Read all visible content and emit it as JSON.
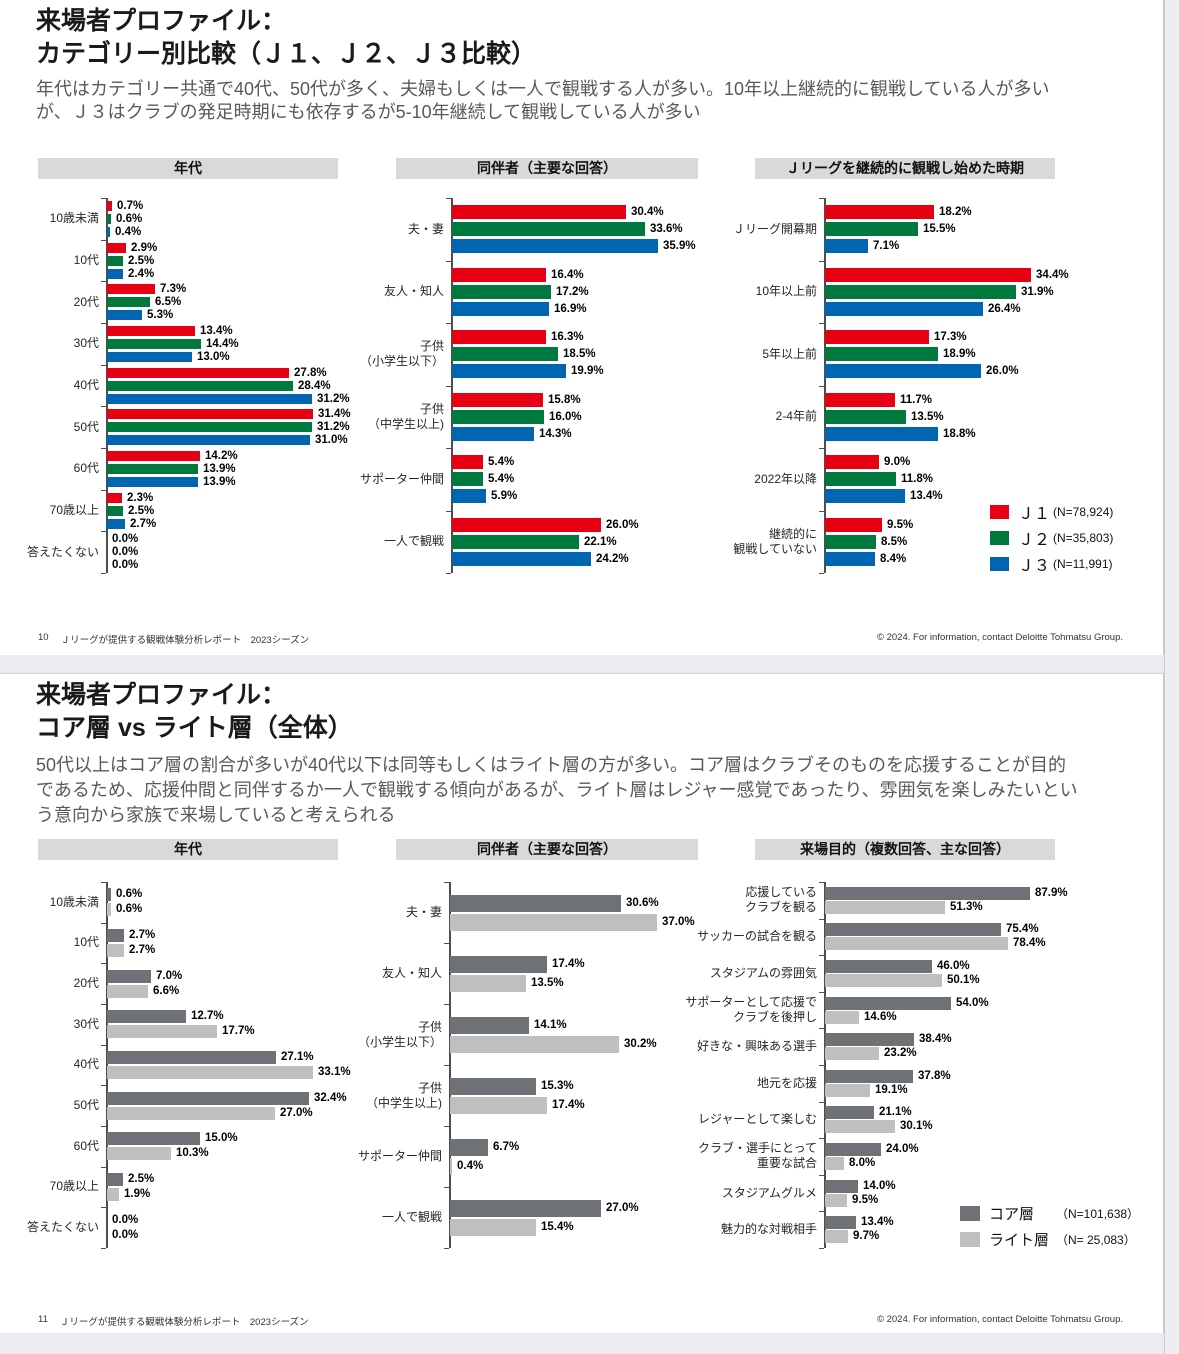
{
  "page_background": "#ebebf0",
  "slides": [
    {
      "page_number": "10",
      "title_line1": "来場者プロファイル：",
      "title_line2": "カテゴリー別比較（Ｊ１、Ｊ２、Ｊ３比較）",
      "body": "年代はカテゴリー共通で40代、50代が多く、夫婦もしくは一人で観戦する人が多い。10年以上継続的に観戦している人が多い\nが、Ｊ３はクラブの発足時期にも依存するが5-10年継続して観戦している人が多い",
      "legend": [
        {
          "label": "Ｊ１",
          "n": "(N=78,924)",
          "color": "#e60012"
        },
        {
          "label": "Ｊ２",
          "n": "(N=35,803)",
          "color": "#00793e"
        },
        {
          "label": "Ｊ３",
          "n": "(N=11,991)",
          "color": "#0066b2"
        }
      ],
      "footer_left": "Ｊリーグが提供する観戦体験分析レポート　2023シーズン",
      "footer_right": "© 2024. For information, contact Deloitte Tohmatsu Group."
    },
    {
      "page_number": "11",
      "title_line1": "来場者プロファイル：",
      "title_line2": "コア層 vs ライト層（全体）",
      "body": "50代以上はコア層の割合が多いが40代以下は同等もしくはライト層の方が多い。コア層はクラブそのものを応援することが目的\nであるため、応援仲間と同伴するか一人で観戦する傾向があるが、ライト層はレジャー感覚であったり、雰囲気を楽しみたいとい\nう意向から家族で来場していると考えられる",
      "legend": [
        {
          "label": "コア層",
          "n": "（N=101,638）",
          "color": "#6e7276"
        },
        {
          "label": "ライト層",
          "n": "（N= 25,083）",
          "color": "#bfbfbf"
        }
      ],
      "footer_left": "Ｊリーグが提供する観戦体験分析レポート　2023シーズン",
      "footer_right": "© 2024. For information, contact Deloitte Tohmatsu Group."
    }
  ],
  "chart_data": [
    {
      "type": "bar",
      "orientation": "horizontal",
      "title": "年代",
      "value_suffix": "%",
      "categories": [
        "10歳未満",
        "10代",
        "20代",
        "30代",
        "40代",
        "50代",
        "60代",
        "70歳以上",
        "答えたくない"
      ],
      "series": [
        {
          "name": "Ｊ１",
          "color": "#e60012",
          "values": [
            0.7,
            2.9,
            7.3,
            13.4,
            27.8,
            31.4,
            14.2,
            2.3,
            0.0
          ]
        },
        {
          "name": "Ｊ２",
          "color": "#00793e",
          "values": [
            0.6,
            2.5,
            6.5,
            14.4,
            28.4,
            31.2,
            13.9,
            2.5,
            0.0
          ]
        },
        {
          "name": "Ｊ３",
          "color": "#0066b2",
          "values": [
            0.4,
            2.4,
            5.3,
            13.0,
            31.2,
            31.0,
            13.9,
            2.7,
            0.0
          ]
        }
      ]
    },
    {
      "type": "bar",
      "orientation": "horizontal",
      "title": "同伴者（主要な回答）",
      "value_suffix": "%",
      "categories": [
        "夫・妻",
        "友人・知人",
        "子供\n（小学生以下）",
        "子供\n（中学生以上)",
        "サポーター仲間",
        "一人で観戦"
      ],
      "series": [
        {
          "name": "Ｊ１",
          "color": "#e60012",
          "values": [
            30.4,
            16.4,
            16.3,
            15.8,
            5.4,
            26.0
          ]
        },
        {
          "name": "Ｊ２",
          "color": "#00793e",
          "values": [
            33.6,
            17.2,
            18.5,
            16.0,
            5.4,
            22.1
          ]
        },
        {
          "name": "Ｊ３",
          "color": "#0066b2",
          "values": [
            35.9,
            16.9,
            19.9,
            14.3,
            5.9,
            24.2
          ]
        }
      ]
    },
    {
      "type": "bar",
      "orientation": "horizontal",
      "title": "Ｊリーグを継続的に観戦し始めた時期",
      "value_suffix": "%",
      "categories": [
        "Ｊリーグ開幕期",
        "10年以上前",
        "5年以上前",
        "2-4年前",
        "2022年以降",
        "継続的に\n観戦していない"
      ],
      "series": [
        {
          "name": "Ｊ１",
          "color": "#e60012",
          "values": [
            18.2,
            34.4,
            17.3,
            11.7,
            9.0,
            9.5
          ]
        },
        {
          "name": "Ｊ２",
          "color": "#00793e",
          "values": [
            15.5,
            31.9,
            18.9,
            13.5,
            11.8,
            8.5
          ]
        },
        {
          "name": "Ｊ３",
          "color": "#0066b2",
          "values": [
            7.1,
            26.4,
            26.0,
            18.8,
            13.4,
            8.4
          ]
        }
      ]
    },
    {
      "type": "bar",
      "orientation": "horizontal",
      "title": "年代",
      "value_suffix": "%",
      "categories": [
        "10歳未満",
        "10代",
        "20代",
        "30代",
        "40代",
        "50代",
        "60代",
        "70歳以上",
        "答えたくない"
      ],
      "series": [
        {
          "name": "コア層",
          "color": "#6e7276",
          "values": [
            0.6,
            2.7,
            7.0,
            12.7,
            27.1,
            32.4,
            15.0,
            2.5,
            0.0
          ]
        },
        {
          "name": "ライト層",
          "color": "#bfbfbf",
          "values": [
            0.6,
            2.7,
            6.6,
            17.7,
            33.1,
            27.0,
            10.3,
            1.9,
            0.0
          ]
        }
      ]
    },
    {
      "type": "bar",
      "orientation": "horizontal",
      "title": "同伴者（主要な回答）",
      "value_suffix": "%",
      "categories": [
        "夫・妻",
        "友人・知人",
        "子供\n（小学生以下）",
        "子供\n（中学生以上)",
        "サポーター仲間",
        "一人で観戦"
      ],
      "series": [
        {
          "name": "コア層",
          "color": "#6e7276",
          "values": [
            30.6,
            17.4,
            14.1,
            15.3,
            6.7,
            27.0
          ]
        },
        {
          "name": "ライト層",
          "color": "#bfbfbf",
          "values": [
            37.0,
            13.5,
            30.2,
            17.4,
            0.4,
            15.4
          ]
        }
      ]
    },
    {
      "type": "bar",
      "orientation": "horizontal",
      "title": "来場目的（複数回答、主な回答）",
      "value_suffix": "%",
      "categories": [
        "応援している\nクラブを観る",
        "サッカーの試合を観る",
        "スタジアムの雰囲気",
        "サポーターとして応援で\nクラブを後押し",
        "好きな・興味ある選手",
        "地元を応援",
        "レジャーとして楽しむ",
        "クラブ・選手にとって\n重要な試合",
        "スタジアムグルメ",
        "魅力的な対戦相手"
      ],
      "series": [
        {
          "name": "コア層",
          "color": "#6e7276",
          "values": [
            87.9,
            75.4,
            46.0,
            54.0,
            38.4,
            37.8,
            21.1,
            24.0,
            14.0,
            13.4
          ]
        },
        {
          "name": "ライト層",
          "color": "#bfbfbf",
          "values": [
            51.3,
            78.4,
            50.1,
            14.6,
            23.2,
            19.1,
            30.1,
            8.0,
            9.5,
            9.7
          ]
        }
      ]
    }
  ]
}
